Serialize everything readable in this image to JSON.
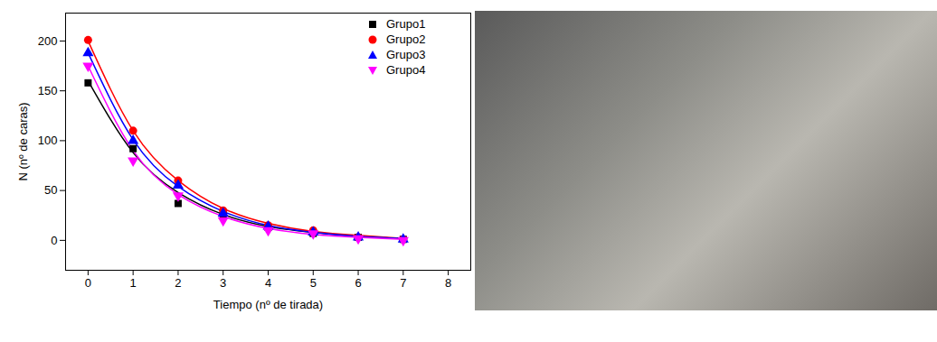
{
  "chart_data": {
    "type": "line",
    "x_label": "Tiempo (nº de tirada)",
    "y_label": "N (nº de caras)",
    "x": [
      0,
      1,
      2,
      3,
      4,
      5,
      6,
      7
    ],
    "xlim": [
      -0.5,
      8.5
    ],
    "xticks": [
      0,
      1,
      2,
      3,
      4,
      5,
      6,
      7,
      8
    ],
    "ylim": [
      -30,
      228
    ],
    "yticks": [
      0,
      50,
      100,
      150,
      200
    ],
    "legend": "top-right",
    "series": [
      {
        "name": "Grupo1",
        "color": "#000000",
        "marker": "square",
        "line_style": "solid",
        "values": [
          158,
          92,
          37,
          25,
          13,
          7,
          3,
          1
        ],
        "fit": [
          160,
          88,
          48,
          26,
          14,
          8,
          4,
          2
        ]
      },
      {
        "name": "Grupo2",
        "color": "#ff0000",
        "marker": "circle",
        "line_style": "solid",
        "values": [
          201,
          110,
          60,
          30,
          15,
          10,
          3,
          1
        ],
        "fit": [
          200,
          110,
          60,
          32,
          17,
          9,
          5,
          2
        ]
      },
      {
        "name": "Grupo3",
        "color": "#0000ff",
        "marker": "triangle",
        "line_style": "solid",
        "values": [
          188,
          100,
          55,
          27,
          14,
          8,
          3,
          1
        ],
        "fit": [
          188,
          101,
          54,
          29,
          15,
          8,
          4,
          2
        ]
      },
      {
        "name": "Grupo4",
        "color": "#ff00ff",
        "marker": "triangle-down",
        "line_style": "solid",
        "values": [
          175,
          80,
          45,
          20,
          10,
          7,
          2,
          0
        ],
        "fit": [
          175,
          90,
          46,
          24,
          12,
          6,
          3,
          1
        ]
      }
    ]
  }
}
